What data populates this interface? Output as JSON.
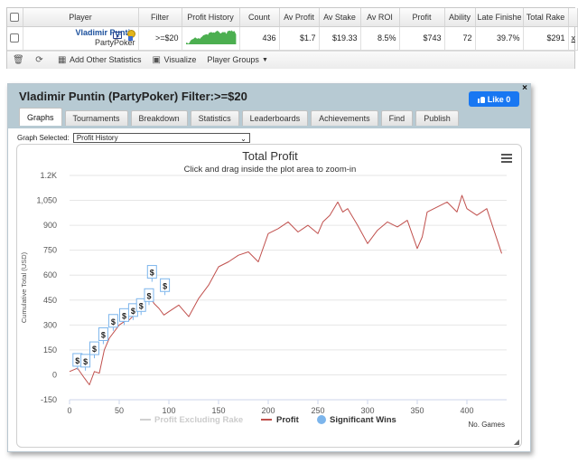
{
  "table": {
    "headers": [
      "",
      "Player",
      "Filter",
      "Profit History",
      "Count",
      "Av Profit",
      "Av Stake",
      "Av ROI",
      "Profit",
      "Ability",
      "Late Finishe",
      "Total Rake",
      ""
    ],
    "row": {
      "player_name": "Vladimir Puntin",
      "site": "PartyPoker",
      "filter": ">=$20",
      "count": "436",
      "av_profit": "$1.7",
      "av_stake": "$19.33",
      "av_roi": "8.5%",
      "profit": "$743",
      "ability": "72",
      "late_finish": "39.7%",
      "total_rake": "$291",
      "remove_label": "x"
    }
  },
  "toolbar": {
    "add_stats": "Add Other Statistics",
    "visualize": "Visualize",
    "player_groups": "Player Groups"
  },
  "window": {
    "title": "Vladimir Puntin (PartyPoker) Filter:>=$20",
    "like_label": "Like 0",
    "close_label": "×",
    "tabs": [
      "Graphs",
      "Tournaments",
      "Breakdown",
      "Statistics",
      "Leaderboards",
      "Achievements",
      "Find",
      "Publish"
    ],
    "active_tab": "Graphs",
    "graph_selected_label": "Graph Selected:",
    "graph_selected_value": "Profit History"
  },
  "colors": {
    "profit_line": "#c0504d",
    "excl_rake_line": "#d0d0d0",
    "significant_win": "#7cb5ec",
    "sparkline": "#4caf50",
    "tab_header_bg": "#b7cad3",
    "like_button": "#1877f2"
  },
  "chart_data": {
    "type": "line",
    "title": "Total Profit",
    "subtitle": "Click and drag inside the plot area to zoom-in",
    "xlabel": "No. Games",
    "ylabel": "Cumulative Total (USD)",
    "xlim": [
      0,
      440
    ],
    "ylim": [
      -150,
      1200
    ],
    "x_ticks": [
      0,
      50,
      100,
      150,
      200,
      250,
      300,
      350,
      400
    ],
    "y_ticks": [
      -150,
      0,
      150,
      300,
      450,
      600,
      750,
      900,
      1050,
      1200
    ],
    "y_tick_labels": [
      "-150",
      "0",
      "150",
      "300",
      "450",
      "600",
      "750",
      "900",
      "1,050",
      "1.2K"
    ],
    "legend_position": "bottom",
    "legend": [
      "Profit Excluding Rake",
      "Profit",
      "Significant Wins"
    ],
    "series": [
      {
        "name": "Profit",
        "x": [
          0,
          8,
          15,
          20,
          25,
          30,
          35,
          40,
          45,
          50,
          55,
          60,
          65,
          70,
          75,
          80,
          85,
          90,
          95,
          100,
          110,
          120,
          130,
          140,
          150,
          160,
          170,
          180,
          190,
          200,
          210,
          220,
          230,
          240,
          250,
          255,
          262,
          270,
          275,
          280,
          290,
          300,
          310,
          320,
          330,
          340,
          350,
          355,
          360,
          370,
          380,
          390,
          395,
          400,
          410,
          420,
          430,
          435
        ],
        "y": [
          20,
          40,
          -20,
          -60,
          20,
          10,
          150,
          220,
          260,
          300,
          320,
          330,
          360,
          400,
          440,
          480,
          430,
          400,
          360,
          380,
          420,
          350,
          460,
          540,
          650,
          680,
          720,
          740,
          680,
          850,
          880,
          920,
          860,
          900,
          850,
          920,
          960,
          1040,
          980,
          1000,
          900,
          790,
          870,
          920,
          890,
          930,
          760,
          830,
          980,
          1010,
          1040,
          980,
          1080,
          1000,
          960,
          1000,
          820,
          730
        ]
      }
    ],
    "significant_wins": [
      {
        "x": 8,
        "y": 30,
        "label": "$"
      },
      {
        "x": 16,
        "y": 25,
        "label": "$"
      },
      {
        "x": 25,
        "y": 100,
        "label": "$"
      },
      {
        "x": 34,
        "y": 185,
        "label": "$"
      },
      {
        "x": 44,
        "y": 265,
        "label": "$"
      },
      {
        "x": 55,
        "y": 300,
        "label": "$"
      },
      {
        "x": 64,
        "y": 330,
        "label": "$"
      },
      {
        "x": 72,
        "y": 360,
        "label": "$"
      },
      {
        "x": 80,
        "y": 420,
        "label": "$"
      },
      {
        "x": 83,
        "y": 560,
        "label": "$"
      },
      {
        "x": 96,
        "y": 480,
        "label": "$"
      }
    ]
  }
}
